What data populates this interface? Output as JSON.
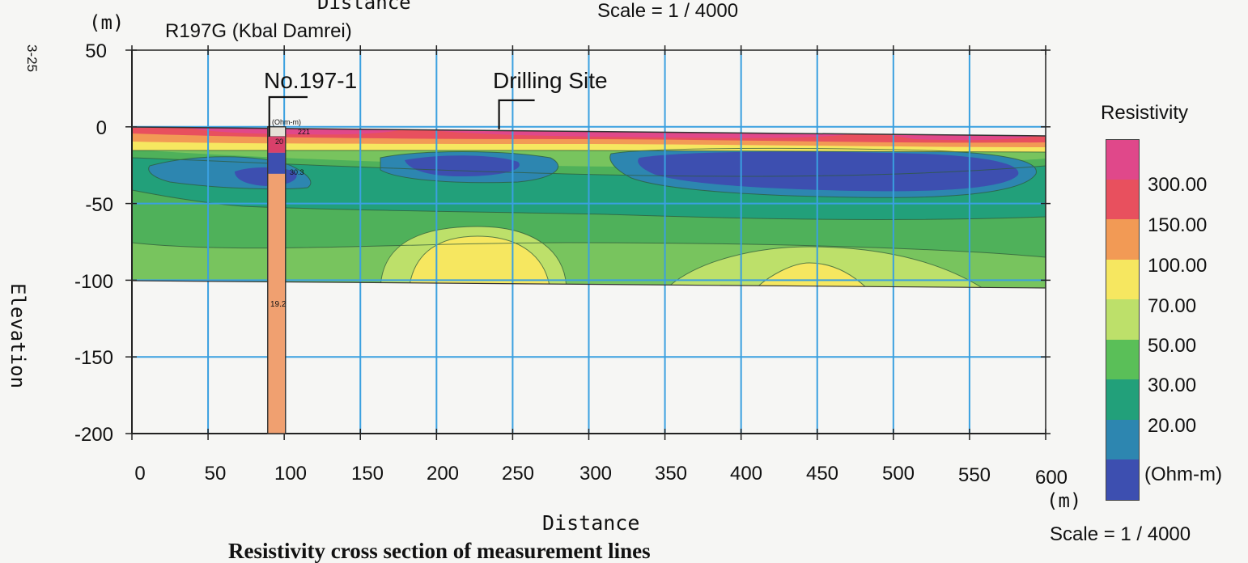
{
  "header": {
    "page_no": "3-25",
    "top_distance_cut": "Distance",
    "top_scale_cut": "Scale = 1 / 4000"
  },
  "chart_data": {
    "type": "heatmap",
    "title": "R197G (Kbal Damrei)",
    "xlabel": "Distance",
    "ylabel": "Elevation",
    "x_unit": "(m)",
    "y_unit": "(m)",
    "xlim": [
      0,
      600
    ],
    "ylim": [
      -200,
      50
    ],
    "x_ticks": [
      "0",
      "50",
      "100",
      "150",
      "200",
      "250",
      "300",
      "350",
      "400",
      "450",
      "500",
      "550",
      "600"
    ],
    "y_ticks": [
      "50",
      "0",
      "-50",
      "-100",
      "-150",
      "-200"
    ],
    "grid": true,
    "scale": "Scale = 1 / 4000",
    "section_depth_range": [
      0,
      -100
    ],
    "annotations": [
      {
        "label": "No.197-1",
        "x": 95
      },
      {
        "label": "Drilling Site",
        "x": 240
      }
    ],
    "borehole": {
      "x": 95,
      "top": 0,
      "bottom": -200,
      "log_values": [
        "(Ohm-m)",
        "221",
        "20",
        "30.3",
        "19.2"
      ]
    },
    "legend": {
      "title": "Resistivity",
      "unit": "(Ohm-m)",
      "levels": [
        "300.00",
        "150.00",
        "100.00",
        "70.00",
        "50.00",
        "30.00",
        "20.00"
      ],
      "colors": [
        "#e0488a",
        "#e8505e",
        "#f29a55",
        "#f6e760",
        "#bde06a",
        "#5abf58",
        "#22a07a",
        "#2d86b0",
        "#3d4fb0"
      ]
    }
  },
  "caption": "Resistivity cross section of measurement lines"
}
